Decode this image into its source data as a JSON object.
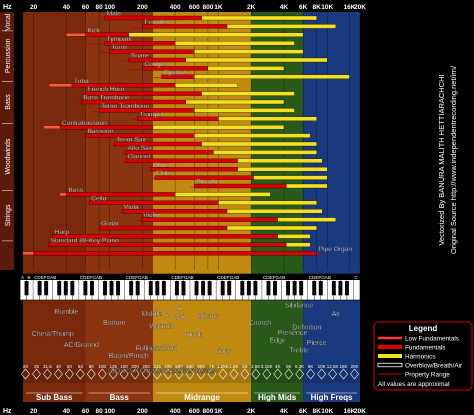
{
  "chart_data": {
    "type": "bar",
    "orientation": "horizontal",
    "x_axis": {
      "label": "Hz",
      "scale": "log",
      "range": [
        15,
        20000
      ],
      "ticks": [
        {
          "v": 20,
          "label": "20"
        },
        {
          "v": 40,
          "label": "40"
        },
        {
          "v": 60,
          "label": "60"
        },
        {
          "v": 80,
          "label": "80"
        },
        {
          "v": 100,
          "label": "100"
        },
        {
          "v": 200,
          "label": "200"
        },
        {
          "v": 400,
          "label": "400"
        },
        {
          "v": 600,
          "label": "600"
        },
        {
          "v": 800,
          "label": "800"
        },
        {
          "v": 1000,
          "label": "1K"
        },
        {
          "v": 2000,
          "label": "2K"
        },
        {
          "v": 4000,
          "label": "4K"
        },
        {
          "v": 6000,
          "label": "6K"
        },
        {
          "v": 8000,
          "label": "8K"
        },
        {
          "v": 10000,
          "label": "10K"
        },
        {
          "v": 16000,
          "label": "16K"
        },
        {
          "v": 20000,
          "label": "20K"
        }
      ]
    },
    "categories": [
      "Vocal",
      "Percussion",
      "Bass",
      "Woodwinds",
      "Strings"
    ],
    "instruments": [
      {
        "name": "Male",
        "group": "Vocal",
        "fund": [
          90,
          700
        ],
        "harm": [
          700,
          8000
        ],
        "range": [
          80,
          1100
        ]
      },
      {
        "name": "Female",
        "group": "Vocal",
        "fund": [
          200,
          1200
        ],
        "harm": [
          1200,
          12000
        ],
        "range": [
          160,
          1500
        ]
      },
      {
        "name": "Kick",
        "group": "Percussion",
        "low": [
          40,
          60
        ],
        "fund": [
          60,
          150
        ],
        "harm": [
          150,
          6000
        ],
        "range": [
          35,
          300
        ]
      },
      {
        "name": "Tympani",
        "group": "Percussion",
        "fund": [
          90,
          400
        ],
        "harm": [
          400,
          5000
        ],
        "range": [
          60,
          600
        ]
      },
      {
        "name": "Toms",
        "group": "Percussion",
        "fund": [
          100,
          600
        ],
        "harm": [
          600,
          6000
        ],
        "range": [
          80,
          900
        ]
      },
      {
        "name": "Snare",
        "group": "Percussion",
        "fund": [
          150,
          500
        ],
        "harm": [
          500,
          10000
        ],
        "range": [
          120,
          900
        ]
      },
      {
        "name": "Congas",
        "group": "Percussion",
        "fund": [
          200,
          800
        ],
        "harm": [
          800,
          4000
        ],
        "range": [
          150,
          1000
        ]
      },
      {
        "name": "Cymbals",
        "group": "Percussion",
        "fund": [
          300,
          600
        ],
        "harm": [
          600,
          16000
        ],
        "range": [
          250,
          900
        ]
      },
      {
        "name": "Tuba",
        "group": "Bass",
        "low": [
          28,
          45
        ],
        "fund": [
          45,
          400
        ],
        "harm": [
          400,
          1500
        ],
        "range": [
          30,
          600
        ]
      },
      {
        "name": "French Horn",
        "group": "Bass",
        "fund": [
          60,
          700
        ],
        "harm": [
          700,
          5000
        ],
        "range": [
          55,
          900
        ]
      },
      {
        "name": "Bass Trombone",
        "group": "Bass",
        "fund": [
          55,
          500
        ],
        "harm": [
          500,
          4000
        ],
        "range": [
          45,
          700
        ]
      },
      {
        "name": "Tenor Trombone",
        "group": "Bass",
        "fund": [
          80,
          600
        ],
        "harm": [
          600,
          5000
        ],
        "range": [
          70,
          800
        ]
      },
      {
        "name": "Trumpet",
        "group": "Bass",
        "fund": [
          180,
          1000
        ],
        "harm": [
          1000,
          8000
        ],
        "range": [
          160,
          1300
        ]
      },
      {
        "name": "Contrabassoon",
        "group": "Woodwinds",
        "low": [
          25,
          35
        ],
        "fund": [
          35,
          250
        ],
        "harm": [
          250,
          4000
        ],
        "range": [
          28,
          300
        ]
      },
      {
        "name": "Bassoon",
        "group": "Woodwinds",
        "fund": [
          60,
          600
        ],
        "harm": [
          600,
          7000
        ],
        "range": [
          55,
          800
        ]
      },
      {
        "name": "Tenor Sax",
        "group": "Woodwinds",
        "fund": [
          110,
          700
        ],
        "harm": [
          700,
          8000
        ],
        "range": [
          100,
          900
        ]
      },
      {
        "name": "Alto Sax",
        "group": "Woodwinds",
        "fund": [
          140,
          900
        ],
        "harm": [
          900,
          8000
        ],
        "range": [
          130,
          1100
        ]
      },
      {
        "name": "Clarinet",
        "group": "Woodwinds",
        "fund": [
          140,
          1500
        ],
        "harm": [
          1500,
          9000
        ],
        "range": [
          130,
          1900
        ]
      },
      {
        "name": "Oboe",
        "group": "Woodwinds",
        "fund": [
          240,
          1500
        ],
        "harm": [
          1500,
          10000
        ],
        "range": [
          220,
          1800
        ]
      },
      {
        "name": "Flute",
        "group": "Woodwinds",
        "fund": [
          260,
          2100
        ],
        "harm": [
          2100,
          10000
        ],
        "range": [
          240,
          2600
        ]
      },
      {
        "name": "Piccolo",
        "group": "Woodwinds",
        "fund": [
          600,
          4200
        ],
        "harm": [
          4200,
          10000
        ],
        "range": [
          550,
          5000
        ]
      },
      {
        "name": "Bass",
        "group": "Strings",
        "low": [
          35,
          40
        ],
        "fund": [
          40,
          400
        ],
        "harm": [
          400,
          3000
        ],
        "range": [
          38,
          600
        ]
      },
      {
        "name": "Cello",
        "group": "Strings",
        "fund": [
          65,
          1000
        ],
        "harm": [
          1000,
          8000
        ],
        "range": [
          60,
          1200
        ]
      },
      {
        "name": "Viola",
        "group": "Strings",
        "fund": [
          130,
          1200
        ],
        "harm": [
          1200,
          9000
        ],
        "range": [
          120,
          1500
        ]
      },
      {
        "name": "Violin",
        "group": "Strings",
        "fund": [
          195,
          3500
        ],
        "harm": [
          3500,
          12000
        ],
        "range": [
          180,
          4200
        ]
      },
      {
        "name": "Guitar",
        "group": "Strings",
        "fund": [
          80,
          1200
        ],
        "harm": [
          1200,
          8000
        ],
        "range": [
          75,
          1500
        ]
      },
      {
        "name": "Harp",
        "group": "Strings",
        "fund": [
          30,
          3500
        ],
        "harm": [
          3500,
          7000
        ],
        "range": [
          28,
          4000
        ]
      },
      {
        "name": "Standard 88-Key Piano",
        "group": "",
        "fund": [
          27.5,
          4200
        ],
        "harm": [
          4200,
          7000
        ],
        "range": [
          27,
          4500
        ]
      },
      {
        "name": "Pipe Organ",
        "group": "",
        "low": [
          16,
          20
        ],
        "fund": [
          20,
          8000
        ],
        "range": [
          16,
          9000
        ]
      }
    ],
    "bands": [
      {
        "label": "Sub Bass",
        "from": 16,
        "to": 60,
        "color": "#7a2a0a"
      },
      {
        "label": "Bass",
        "from": 60,
        "to": 250,
        "color": "#8a3410"
      },
      {
        "label": "Midrange",
        "from": 250,
        "to": 2000,
        "color": "#c08a10"
      },
      {
        "label": "High Mids",
        "from": 2000,
        "to": 6000,
        "color": "#2a5a1a"
      },
      {
        "label": "High Freqs",
        "from": 6000,
        "to": 20000,
        "color": "#1a3a80"
      }
    ],
    "descriptors": [
      {
        "text": "Rumble",
        "f": 40,
        "row": 0
      },
      {
        "text": "Chest/Thump",
        "f": 30,
        "row": 2
      },
      {
        "text": "AC/Ground",
        "f": 55,
        "row": 3
      },
      {
        "text": "Bottom",
        "f": 110,
        "row": 1
      },
      {
        "text": "Boom/Punch",
        "f": 150,
        "row": 4
      },
      {
        "text": "Middle C",
        "f": 262,
        "row": 0.2
      },
      {
        "text": "A",
        "f": 440,
        "row": -0.3
      },
      {
        "text": "440",
        "f": 440,
        "row": 0.5
      },
      {
        "text": "Warmth",
        "f": 300,
        "row": 1.3
      },
      {
        "text": "Fullness/Mud",
        "f": 270,
        "row": 3.3
      },
      {
        "text": "Whack",
        "f": 800,
        "row": 0.4
      },
      {
        "text": "Honk",
        "f": 600,
        "row": 2.1
      },
      {
        "text": "Tinny",
        "f": 1100,
        "row": 3.6
      },
      {
        "text": "Crunch",
        "f": 2400,
        "row": 1
      },
      {
        "text": "Edge",
        "f": 3500,
        "row": 2.6
      },
      {
        "text": "Sibilance",
        "f": 5500,
        "row": -0.6
      },
      {
        "text": "Definition",
        "f": 6500,
        "row": 1.4
      },
      {
        "text": "Air",
        "f": 12000,
        "row": 0.2
      },
      {
        "text": "Presence",
        "f": 4800,
        "row": 1.9
      },
      {
        "text": "Pierce",
        "f": 8000,
        "row": 2.8
      },
      {
        "text": "Treble",
        "f": 5500,
        "row": 3.5
      }
    ],
    "eq_label": "ISO 1/3rd Octave Equalizer Bands",
    "eq_bands": [
      "20",
      "25",
      "31.5",
      "40",
      "50",
      "63",
      "80",
      "100",
      "125",
      "160",
      "200",
      "250",
      "315",
      "400",
      "500",
      "630",
      "800",
      "1K",
      "1.25K",
      "1.6K",
      "2K",
      "2.5K",
      "3.15K",
      "4K",
      "5K",
      "6.3K",
      "8K",
      "10K",
      "12.5K",
      "16K",
      "20K"
    ],
    "piano_octaves": [
      "A",
      "B",
      "CDEFGAB",
      "CDEFGAB",
      "CDEFGAB",
      "CDEFGAB",
      "CDEFGAB",
      "CDEFGAB",
      "CDEFGAB",
      "C"
    ],
    "legend": {
      "title": "Legend",
      "entries": [
        {
          "label": "Low Fundamentals",
          "color": "#ff3b30",
          "style": "thin"
        },
        {
          "label": "Fundamentals",
          "color": "#e00000",
          "style": "thick"
        },
        {
          "label": "Harmonics",
          "color": "#f2e41c",
          "style": "thick"
        },
        {
          "label": "Overblow/Breath/Air",
          "color": "#ffffff",
          "style": "outline"
        },
        {
          "label": "Property Range",
          "color": "#cc0000",
          "style": "hair"
        }
      ],
      "note": "All values are approximat"
    },
    "credits": {
      "line1": "Vectorized By BANURA MALITH HETTIARACHCHI",
      "line2": "Original Source http://www.independentrecording.net/irn/"
    }
  },
  "colors": {
    "fund": "#d80000",
    "low": "#ff5a3c",
    "harm": "#f4e01e",
    "range": "#b00000",
    "tick": "#ffffff"
  }
}
